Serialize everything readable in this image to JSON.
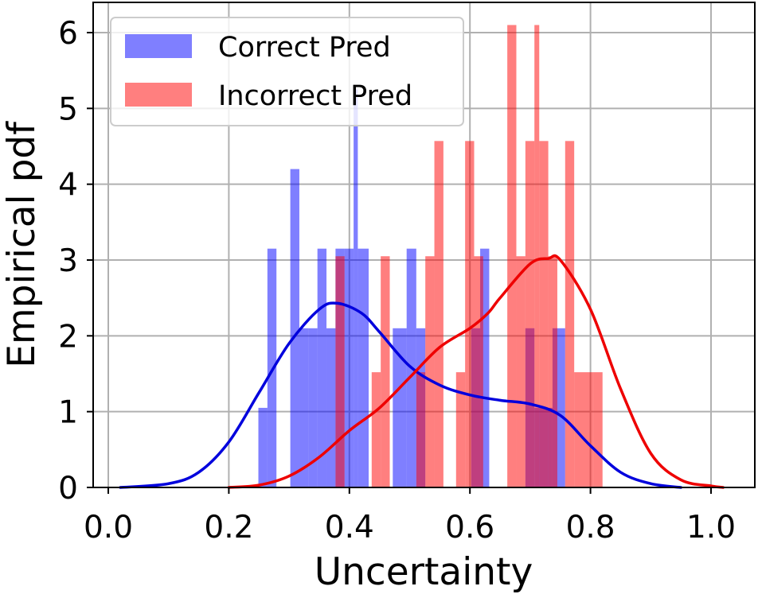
{
  "chart_data": {
    "type": "histogram",
    "xlabel": "Uncertainty",
    "ylabel": "Empirical pdf",
    "xlim": [
      -0.01,
      1.04
    ],
    "ylim": [
      0,
      6.4
    ],
    "xticks": [
      0.0,
      0.2,
      0.4,
      0.6,
      0.8,
      1.0
    ],
    "xtick_labels": [
      "0.0",
      "0.2",
      "0.4",
      "0.6",
      "0.8",
      "1.0"
    ],
    "yticks": [
      0,
      1,
      2,
      3,
      4,
      5,
      6
    ],
    "ytick_labels": [
      "0",
      "1",
      "2",
      "3",
      "4",
      "5",
      "6"
    ],
    "grid": true,
    "legend_position": "top-left",
    "series": [
      {
        "name": "Correct Pred",
        "color": "#0000ff",
        "opacity": 0.5,
        "bins": [
          {
            "x0": 0.249,
            "x1": 0.264,
            "y": 1.05
          },
          {
            "x0": 0.264,
            "x1": 0.279,
            "y": 3.15
          },
          {
            "x0": 0.302,
            "x1": 0.317,
            "y": 4.2
          },
          {
            "x0": 0.317,
            "x1": 0.332,
            "y": 2.1
          },
          {
            "x0": 0.332,
            "x1": 0.347,
            "y": 2.1
          },
          {
            "x0": 0.347,
            "x1": 0.362,
            "y": 3.15
          },
          {
            "x0": 0.362,
            "x1": 0.377,
            "y": 2.1
          },
          {
            "x0": 0.377,
            "x1": 0.392,
            "y": 3.15
          },
          {
            "x0": 0.392,
            "x1": 0.407,
            "y": 3.15
          },
          {
            "x0": 0.407,
            "x1": 0.414,
            "y": 5.25
          },
          {
            "x0": 0.414,
            "x1": 0.432,
            "y": 3.15
          },
          {
            "x0": 0.472,
            "x1": 0.495,
            "y": 2.1
          },
          {
            "x0": 0.495,
            "x1": 0.511,
            "y": 3.15
          },
          {
            "x0": 0.511,
            "x1": 0.526,
            "y": 2.1
          },
          {
            "x0": 0.602,
            "x1": 0.617,
            "y": 2.1
          },
          {
            "x0": 0.617,
            "x1": 0.632,
            "y": 3.15
          },
          {
            "x0": 0.692,
            "x1": 0.707,
            "y": 2.1
          },
          {
            "x0": 0.707,
            "x1": 0.737,
            "y": 1.05
          },
          {
            "x0": 0.737,
            "x1": 0.758,
            "y": 2.1
          }
        ],
        "kde": {
          "x": [
            0.02,
            0.1,
            0.15,
            0.2,
            0.25,
            0.3,
            0.35,
            0.38,
            0.42,
            0.45,
            0.5,
            0.55,
            0.6,
            0.65,
            0.7,
            0.75,
            0.8,
            0.85,
            0.9,
            0.95
          ],
          "y": [
            0.0,
            0.05,
            0.2,
            0.6,
            1.25,
            1.9,
            2.35,
            2.43,
            2.3,
            2.05,
            1.6,
            1.35,
            1.22,
            1.15,
            1.1,
            0.95,
            0.55,
            0.2,
            0.05,
            0.0
          ]
        }
      },
      {
        "name": "Incorrect Pred",
        "color": "#ff0000",
        "opacity": 0.5,
        "bins": [
          {
            "x0": 0.377,
            "x1": 0.392,
            "y": 3.05
          },
          {
            "x0": 0.437,
            "x1": 0.452,
            "y": 1.52
          },
          {
            "x0": 0.452,
            "x1": 0.467,
            "y": 3.05
          },
          {
            "x0": 0.511,
            "x1": 0.526,
            "y": 1.52
          },
          {
            "x0": 0.526,
            "x1": 0.541,
            "y": 3.05
          },
          {
            "x0": 0.541,
            "x1": 0.556,
            "y": 4.57
          },
          {
            "x0": 0.577,
            "x1": 0.592,
            "y": 1.52
          },
          {
            "x0": 0.592,
            "x1": 0.607,
            "y": 4.57
          },
          {
            "x0": 0.607,
            "x1": 0.622,
            "y": 3.05
          },
          {
            "x0": 0.662,
            "x1": 0.677,
            "y": 6.1
          },
          {
            "x0": 0.677,
            "x1": 0.692,
            "y": 3.05
          },
          {
            "x0": 0.692,
            "x1": 0.707,
            "y": 4.57
          },
          {
            "x0": 0.707,
            "x1": 0.715,
            "y": 6.1
          },
          {
            "x0": 0.715,
            "x1": 0.73,
            "y": 4.57
          },
          {
            "x0": 0.73,
            "x1": 0.745,
            "y": 3.05
          },
          {
            "x0": 0.758,
            "x1": 0.773,
            "y": 4.57
          },
          {
            "x0": 0.773,
            "x1": 0.805,
            "y": 1.52
          },
          {
            "x0": 0.805,
            "x1": 0.82,
            "y": 1.52
          }
        ],
        "kde": {
          "x": [
            0.2,
            0.25,
            0.3,
            0.35,
            0.4,
            0.45,
            0.5,
            0.55,
            0.6,
            0.63,
            0.65,
            0.7,
            0.73,
            0.75,
            0.8,
            0.85,
            0.9,
            0.95,
            1.0,
            1.02
          ],
          "y": [
            0.0,
            0.03,
            0.15,
            0.4,
            0.75,
            1.05,
            1.45,
            1.85,
            2.1,
            2.3,
            2.5,
            2.95,
            3.02,
            3.0,
            2.35,
            1.3,
            0.45,
            0.1,
            0.02,
            0.0
          ]
        }
      }
    ]
  }
}
